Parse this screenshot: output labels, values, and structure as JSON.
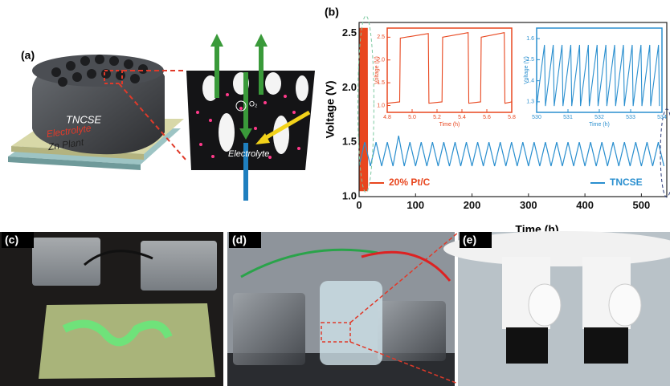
{
  "panel_labels": [
    "(a)",
    "(b)",
    "(c)",
    "(d)",
    "(e)"
  ],
  "diagram": {
    "tncse": "TNCSE",
    "electrolyte": "Electrolyte",
    "zn_plant": "Zn Plant",
    "o2": "O₂",
    "pore_electrolyte": "Electrolyte"
  },
  "chart_data": [
    {
      "type": "line",
      "xlabel": "Time (h)",
      "ylabel": "Voltage (V)",
      "xlim": [
        0,
        545
      ],
      "xticks": [
        0,
        100,
        200,
        300,
        400,
        500
      ],
      "ylim": [
        1.0,
        2.6
      ],
      "yticks": [
        {
          "value": 1.0,
          "label": "1.0"
        },
        1.5,
        {
          "value": 2.0,
          "label": "2.0"
        },
        2.5
      ],
      "series": [
        {
          "name": "20% Pt/C",
          "color": "#e8471f",
          "x": [
            0,
            0.5,
            1,
            1.5,
            2,
            2.5,
            3,
            3.5,
            4,
            4.5,
            5,
            5.5,
            6,
            6.5,
            7,
            7.5,
            8,
            8.5,
            9,
            9.5,
            10,
            10.5,
            11,
            11.5,
            12,
            12.5,
            13,
            13.5,
            14,
            14.5,
            15
          ],
          "values": [
            1.05,
            2.55,
            1.05,
            2.55,
            1.05,
            2.55,
            1.05,
            2.55,
            1.05,
            2.55,
            1.05,
            2.55,
            1.05,
            2.55,
            1.05,
            2.55,
            1.05,
            2.55,
            1.05,
            2.55,
            1.05,
            2.55,
            1.05,
            2.55,
            1.05,
            2.55,
            1.05,
            2.55,
            1.05,
            2.55,
            1.05
          ]
        },
        {
          "name": "TNCSE",
          "color": "#2a8fcf",
          "x": [
            0,
            10,
            20,
            30,
            40,
            50,
            60,
            70,
            80,
            90,
            100,
            110,
            120,
            130,
            140,
            150,
            160,
            170,
            180,
            190,
            200,
            210,
            220,
            230,
            240,
            250,
            260,
            270,
            280,
            290,
            300,
            310,
            320,
            330,
            340,
            350,
            360,
            370,
            380,
            390,
            400,
            410,
            420,
            430,
            440,
            450,
            460,
            470,
            480,
            490,
            500,
            510,
            520,
            530,
            540
          ],
          "values": [
            1.28,
            1.5,
            1.28,
            1.5,
            1.28,
            1.5,
            1.28,
            1.56,
            1.28,
            1.5,
            1.28,
            1.5,
            1.28,
            1.5,
            1.28,
            1.5,
            1.28,
            1.5,
            1.28,
            1.5,
            1.28,
            1.5,
            1.28,
            1.5,
            1.28,
            1.5,
            1.28,
            1.5,
            1.28,
            1.5,
            1.28,
            1.5,
            1.28,
            1.5,
            1.28,
            1.5,
            1.28,
            1.5,
            1.28,
            1.5,
            1.28,
            1.5,
            1.28,
            1.5,
            1.28,
            1.5,
            1.28,
            1.5,
            1.28,
            1.5,
            1.28,
            1.5,
            1.28,
            1.5,
            1.28
          ]
        }
      ]
    },
    {
      "type": "line",
      "xlabel": "Time (h)",
      "ylabel": "Voltage (V)",
      "color": "#e8471f",
      "xlim": [
        4.8,
        5.8
      ],
      "xticks": [
        4.8,
        {
          "value": 5.0,
          "label": "5.0"
        },
        5.2,
        5.4,
        5.6,
        5.8
      ],
      "ylim": [
        0.85,
        2.7
      ],
      "yticks": [
        {
          "value": 1.0,
          "label": "1.0"
        },
        1.5,
        {
          "value": 2.0,
          "label": "2.0"
        },
        2.5
      ],
      "series": [
        {
          "color": "#e8471f",
          "x": [
            4.8,
            4.9,
            4.905,
            5.13,
            5.135,
            5.24,
            5.245,
            5.45,
            5.455,
            5.55,
            5.555,
            5.74,
            5.745,
            5.8
          ],
          "values": [
            1.05,
            1.08,
            2.48,
            2.58,
            1.05,
            1.08,
            2.5,
            2.6,
            1.05,
            1.08,
            2.5,
            2.6,
            1.05,
            1.08
          ]
        }
      ]
    },
    {
      "type": "line",
      "xlabel": "Time (h)",
      "ylabel": "Voltage (V)",
      "color": "#2a8fcf",
      "xlim": [
        530,
        534
      ],
      "xticks": [
        530,
        531,
        532,
        533,
        534
      ],
      "ylim": [
        1.25,
        1.65
      ],
      "yticks": [
        1.3,
        1.4,
        1.5,
        1.6
      ],
      "series": [
        {
          "color": "#2a8fcf",
          "x": [
            530,
            530.25,
            530.28,
            530.53,
            530.56,
            530.81,
            530.84,
            531.09,
            531.12,
            531.37,
            531.4,
            531.65,
            531.68,
            531.93,
            531.96,
            532.21,
            532.24,
            532.49,
            532.52,
            532.77,
            532.8,
            533.05,
            533.08,
            533.33,
            533.36,
            533.61,
            533.64,
            533.89,
            533.92
          ],
          "values": [
            1.28,
            1.57,
            1.28,
            1.57,
            1.28,
            1.57,
            1.28,
            1.57,
            1.28,
            1.57,
            1.28,
            1.57,
            1.28,
            1.57,
            1.28,
            1.57,
            1.28,
            1.57,
            1.28,
            1.57,
            1.28,
            1.57,
            1.28,
            1.57,
            1.28,
            1.57,
            1.28,
            1.57,
            1.28
          ]
        }
      ]
    }
  ]
}
